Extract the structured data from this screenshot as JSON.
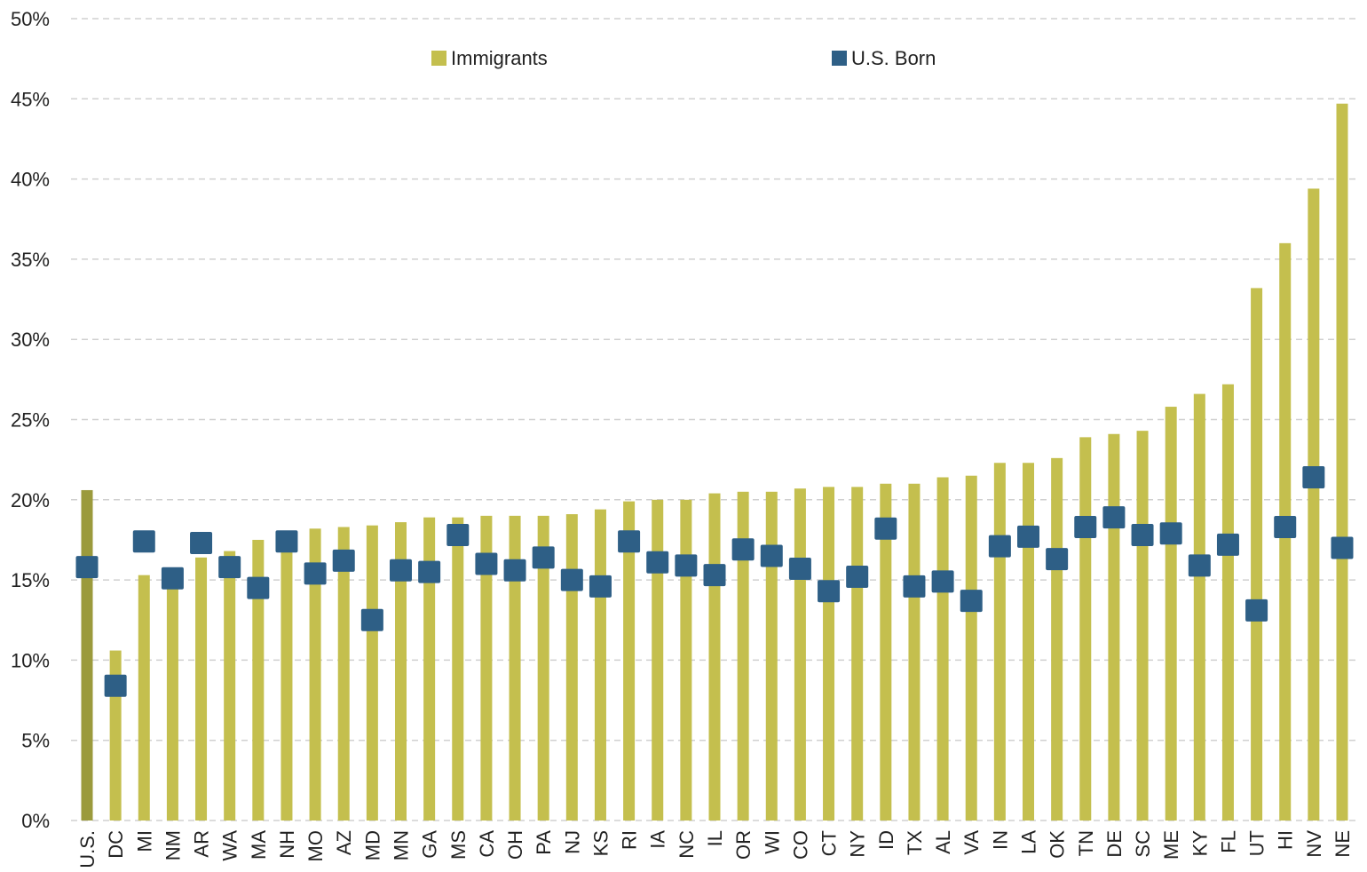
{
  "chart_data": {
    "type": "bar",
    "categories": [
      "U.S.",
      "DC",
      "MI",
      "NM",
      "AR",
      "WA",
      "MA",
      "NH",
      "MO",
      "AZ",
      "MD",
      "MN",
      "GA",
      "MS",
      "CA",
      "OH",
      "PA",
      "NJ",
      "KS",
      "RI",
      "IA",
      "NC",
      "IL",
      "OR",
      "WI",
      "CO",
      "CT",
      "NY",
      "ID",
      "TX",
      "AL",
      "VA",
      "IN",
      "LA",
      "OK",
      "TN",
      "DE",
      "SC",
      "ME",
      "KY",
      "FL",
      "UT",
      "HI",
      "NV",
      "NE"
    ],
    "series": [
      {
        "name": "Immigrants",
        "type": "bar",
        "color": "#c4bf4e",
        "highlight_categories": [
          "U.S."
        ],
        "highlight_color": "#9b9a3c",
        "values": [
          20.6,
          10.6,
          15.3,
          15.0,
          16.4,
          16.8,
          17.5,
          17.2,
          18.2,
          18.3,
          18.4,
          18.6,
          18.9,
          18.9,
          19.0,
          19.0,
          19.0,
          19.1,
          19.4,
          19.9,
          20.0,
          20.0,
          20.4,
          20.5,
          20.5,
          20.7,
          20.8,
          20.8,
          21.0,
          21.0,
          21.4,
          21.5,
          22.3,
          22.3,
          22.6,
          23.9,
          24.1,
          24.3,
          25.8,
          26.6,
          27.2,
          33.2,
          36.0,
          39.4,
          44.7
        ]
      },
      {
        "name": "U.S. Born",
        "type": "square",
        "color": "#2e5f86",
        "values": [
          15.8,
          8.4,
          17.4,
          15.1,
          17.3,
          15.8,
          14.5,
          17.4,
          15.4,
          16.2,
          12.5,
          15.6,
          15.5,
          17.8,
          16.0,
          15.6,
          16.4,
          15.0,
          14.6,
          17.4,
          16.1,
          15.9,
          15.3,
          16.9,
          16.5,
          15.7,
          14.3,
          15.2,
          18.2,
          14.6,
          14.9,
          13.7,
          17.1,
          17.7,
          16.3,
          18.3,
          18.9,
          17.8,
          17.9,
          15.9,
          17.2,
          13.1,
          18.3,
          21.4,
          17.0
        ]
      }
    ],
    "ylim": [
      0,
      50
    ],
    "yticks": [
      {
        "value": 0,
        "label": "0%"
      },
      {
        "value": 5,
        "label": "5%"
      },
      {
        "value": 10,
        "label": "10%"
      },
      {
        "value": 15,
        "label": "15%"
      },
      {
        "value": 20,
        "label": "20%"
      },
      {
        "value": 25,
        "label": "25%"
      },
      {
        "value": 30,
        "label": "30%"
      },
      {
        "value": 35,
        "label": "35%"
      },
      {
        "value": 40,
        "label": "40%"
      },
      {
        "value": 45,
        "label": "45%"
      },
      {
        "value": 50,
        "label": "50%"
      }
    ],
    "grid": true,
    "legend": "top"
  }
}
